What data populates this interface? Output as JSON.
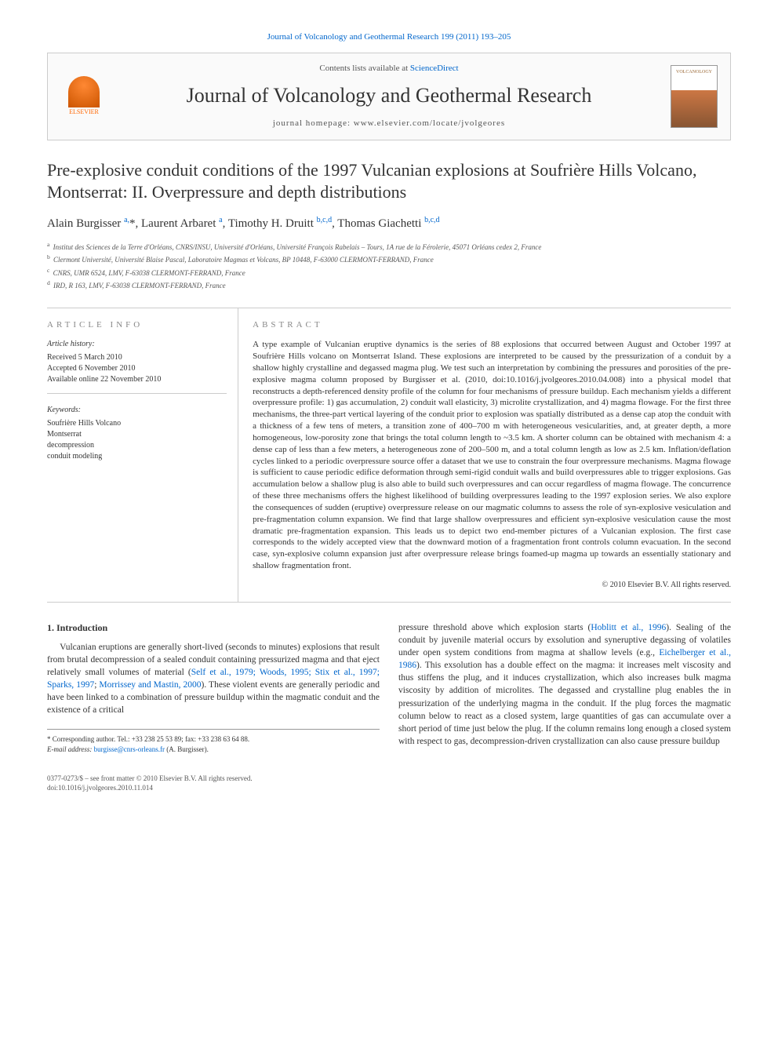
{
  "top_citation": "Journal of Volcanology and Geothermal Research 199 (2011) 193–205",
  "header": {
    "contents_prefix": "Contents lists available at ",
    "contents_link": "ScienceDirect",
    "journal_title": "Journal of Volcanology and Geothermal Research",
    "homepage_label": "journal homepage: www.elsevier.com/locate/jvolgeores",
    "publisher_label": "ELSEVIER",
    "cover_label": "VOLCANOLOGY"
  },
  "title": "Pre-explosive conduit conditions of the 1997 Vulcanian explosions at Soufrière Hills Volcano, Montserrat: II. Overpressure and depth distributions",
  "authors_html": "Alain Burgisser <sup>a,</sup><span class='corr-star'>*</span>, Laurent Arbaret <sup>a</sup>, Timothy H. Druitt <sup>b,c,d</sup>, Thomas Giachetti <sup>b,c,d</sup>",
  "affiliations": [
    {
      "tag": "a",
      "text": "Institut des Sciences de la Terre d'Orléans, CNRS/INSU, Université d'Orléans, Université François Rabelais – Tours, 1A rue de la Férolerie, 45071 Orléans cedex 2, France"
    },
    {
      "tag": "b",
      "text": "Clermont Université, Université Blaise Pascal, Laboratoire Magmas et Volcans, BP 10448, F-63000 CLERMONT-FERRAND, France"
    },
    {
      "tag": "c",
      "text": "CNRS, UMR 6524, LMV, F-63038 CLERMONT-FERRAND, France"
    },
    {
      "tag": "d",
      "text": "IRD, R 163, LMV, F-63038 CLERMONT-FERRAND, France"
    }
  ],
  "article_info": {
    "heading": "article info",
    "history_label": "Article history:",
    "received": "Received 5 March 2010",
    "accepted": "Accepted 6 November 2010",
    "online": "Available online 22 November 2010",
    "keywords_label": "Keywords:",
    "keywords": [
      "Soufrière Hills Volcano",
      "Montserrat",
      "decompression",
      "conduit modeling"
    ]
  },
  "abstract": {
    "heading": "abstract",
    "text": "A type example of Vulcanian eruptive dynamics is the series of 88 explosions that occurred between August and October 1997 at Soufrière Hills volcano on Montserrat Island. These explosions are interpreted to be caused by the pressurization of a conduit by a shallow highly crystalline and degassed magma plug. We test such an interpretation by combining the pressures and porosities of the pre-explosive magma column proposed by Burgisser et al. (2010, doi:10.1016/j.jvolgeores.2010.04.008) into a physical model that reconstructs a depth-referenced density profile of the column for four mechanisms of pressure buildup. Each mechanism yields a different overpressure profile: 1) gas accumulation, 2) conduit wall elasticity, 3) microlite crystallization, and 4) magma flowage. For the first three mechanisms, the three-part vertical layering of the conduit prior to explosion was spatially distributed as a dense cap atop the conduit with a thickness of a few tens of meters, a transition zone of 400–700 m with heterogeneous vesicularities, and, at greater depth, a more homogeneous, low-porosity zone that brings the total column length to ~3.5 km. A shorter column can be obtained with mechanism 4: a dense cap of less than a few meters, a heterogeneous zone of 200–500 m, and a total column length as low as 2.5 km. Inflation/deflation cycles linked to a periodic overpressure source offer a dataset that we use to constrain the four overpressure mechanisms. Magma flowage is sufficient to cause periodic edifice deformation through semi-rigid conduit walls and build overpressures able to trigger explosions. Gas accumulation below a shallow plug is also able to build such overpressures and can occur regardless of magma flowage. The concurrence of these three mechanisms offers the highest likelihood of building overpressures leading to the 1997 explosion series. We also explore the consequences of sudden (eruptive) overpressure release on our magmatic columns to assess the role of syn-explosive vesiculation and pre-fragmentation column expansion. We find that large shallow overpressures and efficient syn-explosive vesiculation cause the most dramatic pre-fragmentation expansion. This leads us to depict two end-member pictures of a Vulcanian explosion. The first case corresponds to the widely accepted view that the downward motion of a fragmentation front controls column evacuation. In the second case, syn-explosive column expansion just after overpressure release brings foamed-up magma up towards an essentially stationary and shallow fragmentation front.",
    "copyright": "© 2010 Elsevier B.V. All rights reserved."
  },
  "intro": {
    "heading": "1. Introduction",
    "para1_pre": "Vulcanian eruptions are generally short-lived (seconds to minutes) explosions that result from brutal decompression of a sealed conduit containing pressurized magma and that eject relatively small volumes of material (",
    "para1_refs1": "Self et al., 1979; Woods, 1995; Stix et al., 1997; Sparks, 1997",
    "para1_mid1": "; ",
    "para1_refs2": "Morrissey and Mastin, 2000",
    "para1_post1": "). These violent events are generally periodic and have been linked to a combination of pressure buildup within the magmatic conduit and the existence of a critical",
    "para2_pre": "pressure threshold above which explosion starts (",
    "para2_ref1": "Hoblitt et al., 1996",
    "para2_mid1": "). Sealing of the conduit by juvenile material occurs by exsolution and syneruptive degassing of volatiles under open system conditions from magma at shallow levels (e.g., ",
    "para2_ref2": "Eichelberger et al., 1986",
    "para2_post": "). This exsolution has a double effect on the magma: it increases melt viscosity and thus stiffens the plug, and it induces crystallization, which also increases bulk magma viscosity by addition of microlites. The degassed and crystalline plug enables the in pressurization of the underlying magma in the conduit. If the plug forces the magmatic column below to react as a closed system, large quantities of gas can accumulate over a short period of time just below the plug. If the column remains long enough a closed system with respect to gas, decompression-driven crystallization can also cause pressure buildup"
  },
  "footnote": {
    "corr_label": "* Corresponding author. Tel.: +33 238 25 53 89; fax: +33 238 63 64 88.",
    "email_label": "E-mail address:",
    "email": "burgisse@cnrs-orleans.fr",
    "email_tail": " (A. Burgisser)."
  },
  "bottom": {
    "issn_line": "0377-0273/$ – see front matter © 2010 Elsevier B.V. All rights reserved.",
    "doi_line": "doi:10.1016/j.jvolgeores.2010.11.014"
  },
  "colors": {
    "link": "#0066cc",
    "rule": "#cccccc",
    "text": "#333333",
    "muted": "#555555",
    "elsevier": "#ff6600"
  }
}
